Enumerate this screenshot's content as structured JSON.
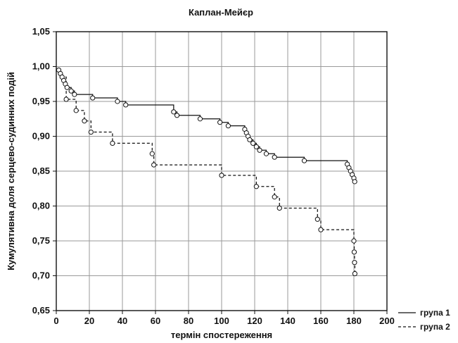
{
  "chart_data": {
    "type": "line",
    "title": "Каплан-Мейєр",
    "xlabel": "термін спостереження",
    "ylabel": "Кумулятивна доля серцево-судинних подій",
    "xlim": [
      0,
      200
    ],
    "ylim": [
      0.65,
      1.05
    ],
    "grid": true,
    "legend_position": "bottom-right",
    "x_ticks": [
      "0",
      "20",
      "40",
      "60",
      "80",
      "100",
      "120",
      "140",
      "160",
      "180",
      "200"
    ],
    "y_ticks": [
      "0,65",
      "0,70",
      "0,75",
      "0,80",
      "0,85",
      "0,90",
      "0,95",
      "1,00",
      "1,05"
    ],
    "series": [
      {
        "name": "група 1",
        "style": "solid",
        "color": "#111111",
        "points": [
          [
            1.5,
            0.995
          ],
          [
            2.5,
            0.99
          ],
          [
            3.5,
            0.985
          ],
          [
            4.5,
            0.98
          ],
          [
            5.5,
            0.975
          ],
          [
            6.5,
            0.97
          ],
          [
            9,
            0.965
          ],
          [
            11,
            0.96
          ],
          [
            22,
            0.955
          ],
          [
            37,
            0.95
          ],
          [
            42,
            0.945
          ],
          [
            71,
            0.935
          ],
          [
            73,
            0.93
          ],
          [
            87,
            0.925
          ],
          [
            99,
            0.92
          ],
          [
            104,
            0.915
          ],
          [
            114,
            0.91
          ],
          [
            115,
            0.905
          ],
          [
            116,
            0.9
          ],
          [
            117,
            0.895
          ],
          [
            119,
            0.89
          ],
          [
            121,
            0.885
          ],
          [
            123,
            0.88
          ],
          [
            127,
            0.875
          ],
          [
            132,
            0.87
          ],
          [
            150,
            0.865
          ],
          [
            176,
            0.86
          ],
          [
            177,
            0.855
          ],
          [
            178,
            0.85
          ],
          [
            179,
            0.845
          ],
          [
            180,
            0.84
          ],
          [
            180.5,
            0.835
          ]
        ]
      },
      {
        "name": "група 2",
        "style": "dashed",
        "color": "#111111",
        "points": [
          [
            2.5,
            0.985
          ],
          [
            6,
            0.953
          ],
          [
            12,
            0.937
          ],
          [
            17,
            0.922
          ],
          [
            21,
            0.906
          ],
          [
            34,
            0.89
          ],
          [
            58,
            0.875
          ],
          [
            59,
            0.859
          ],
          [
            100,
            0.844
          ],
          [
            121,
            0.828
          ],
          [
            132,
            0.813
          ],
          [
            135,
            0.797
          ],
          [
            158,
            0.781
          ],
          [
            160,
            0.766
          ],
          [
            180,
            0.75
          ],
          [
            180.2,
            0.734
          ],
          [
            180.4,
            0.719
          ],
          [
            180.6,
            0.703
          ]
        ]
      }
    ]
  }
}
